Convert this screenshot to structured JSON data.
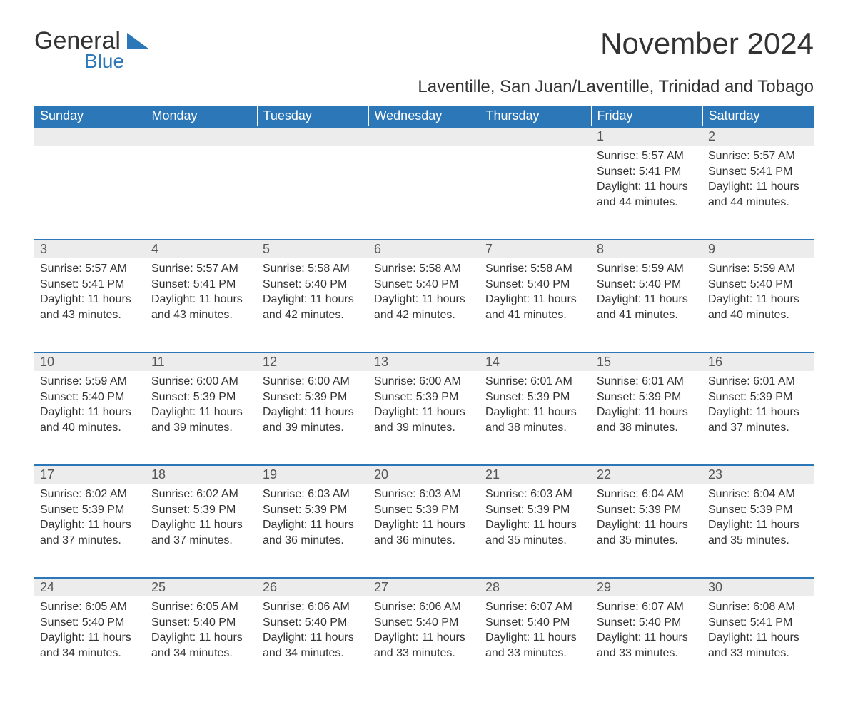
{
  "logo": {
    "main": "General",
    "sub": "Blue",
    "main_color": "#333333",
    "sub_color": "#2c77b8"
  },
  "title": "November 2024",
  "location": "Laventille, San Juan/Laventille, Trinidad and Tobago",
  "colors": {
    "header_bg": "#2c77b8",
    "header_text": "#ffffff",
    "daynum_bg": "#ececec",
    "row_rule": "#2c77b8",
    "body_text": "#333333"
  },
  "day_headers": [
    "Sunday",
    "Monday",
    "Tuesday",
    "Wednesday",
    "Thursday",
    "Friday",
    "Saturday"
  ],
  "weeks": [
    [
      null,
      null,
      null,
      null,
      null,
      {
        "n": "1",
        "sunrise": "5:57 AM",
        "sunset": "5:41 PM",
        "daylight": "11 hours and 44 minutes."
      },
      {
        "n": "2",
        "sunrise": "5:57 AM",
        "sunset": "5:41 PM",
        "daylight": "11 hours and 44 minutes."
      }
    ],
    [
      {
        "n": "3",
        "sunrise": "5:57 AM",
        "sunset": "5:41 PM",
        "daylight": "11 hours and 43 minutes."
      },
      {
        "n": "4",
        "sunrise": "5:57 AM",
        "sunset": "5:41 PM",
        "daylight": "11 hours and 43 minutes."
      },
      {
        "n": "5",
        "sunrise": "5:58 AM",
        "sunset": "5:40 PM",
        "daylight": "11 hours and 42 minutes."
      },
      {
        "n": "6",
        "sunrise": "5:58 AM",
        "sunset": "5:40 PM",
        "daylight": "11 hours and 42 minutes."
      },
      {
        "n": "7",
        "sunrise": "5:58 AM",
        "sunset": "5:40 PM",
        "daylight": "11 hours and 41 minutes."
      },
      {
        "n": "8",
        "sunrise": "5:59 AM",
        "sunset": "5:40 PM",
        "daylight": "11 hours and 41 minutes."
      },
      {
        "n": "9",
        "sunrise": "5:59 AM",
        "sunset": "5:40 PM",
        "daylight": "11 hours and 40 minutes."
      }
    ],
    [
      {
        "n": "10",
        "sunrise": "5:59 AM",
        "sunset": "5:40 PM",
        "daylight": "11 hours and 40 minutes."
      },
      {
        "n": "11",
        "sunrise": "6:00 AM",
        "sunset": "5:39 PM",
        "daylight": "11 hours and 39 minutes."
      },
      {
        "n": "12",
        "sunrise": "6:00 AM",
        "sunset": "5:39 PM",
        "daylight": "11 hours and 39 minutes."
      },
      {
        "n": "13",
        "sunrise": "6:00 AM",
        "sunset": "5:39 PM",
        "daylight": "11 hours and 39 minutes."
      },
      {
        "n": "14",
        "sunrise": "6:01 AM",
        "sunset": "5:39 PM",
        "daylight": "11 hours and 38 minutes."
      },
      {
        "n": "15",
        "sunrise": "6:01 AM",
        "sunset": "5:39 PM",
        "daylight": "11 hours and 38 minutes."
      },
      {
        "n": "16",
        "sunrise": "6:01 AM",
        "sunset": "5:39 PM",
        "daylight": "11 hours and 37 minutes."
      }
    ],
    [
      {
        "n": "17",
        "sunrise": "6:02 AM",
        "sunset": "5:39 PM",
        "daylight": "11 hours and 37 minutes."
      },
      {
        "n": "18",
        "sunrise": "6:02 AM",
        "sunset": "5:39 PM",
        "daylight": "11 hours and 37 minutes."
      },
      {
        "n": "19",
        "sunrise": "6:03 AM",
        "sunset": "5:39 PM",
        "daylight": "11 hours and 36 minutes."
      },
      {
        "n": "20",
        "sunrise": "6:03 AM",
        "sunset": "5:39 PM",
        "daylight": "11 hours and 36 minutes."
      },
      {
        "n": "21",
        "sunrise": "6:03 AM",
        "sunset": "5:39 PM",
        "daylight": "11 hours and 35 minutes."
      },
      {
        "n": "22",
        "sunrise": "6:04 AM",
        "sunset": "5:39 PM",
        "daylight": "11 hours and 35 minutes."
      },
      {
        "n": "23",
        "sunrise": "6:04 AM",
        "sunset": "5:39 PM",
        "daylight": "11 hours and 35 minutes."
      }
    ],
    [
      {
        "n": "24",
        "sunrise": "6:05 AM",
        "sunset": "5:40 PM",
        "daylight": "11 hours and 34 minutes."
      },
      {
        "n": "25",
        "sunrise": "6:05 AM",
        "sunset": "5:40 PM",
        "daylight": "11 hours and 34 minutes."
      },
      {
        "n": "26",
        "sunrise": "6:06 AM",
        "sunset": "5:40 PM",
        "daylight": "11 hours and 34 minutes."
      },
      {
        "n": "27",
        "sunrise": "6:06 AM",
        "sunset": "5:40 PM",
        "daylight": "11 hours and 33 minutes."
      },
      {
        "n": "28",
        "sunrise": "6:07 AM",
        "sunset": "5:40 PM",
        "daylight": "11 hours and 33 minutes."
      },
      {
        "n": "29",
        "sunrise": "6:07 AM",
        "sunset": "5:40 PM",
        "daylight": "11 hours and 33 minutes."
      },
      {
        "n": "30",
        "sunrise": "6:08 AM",
        "sunset": "5:41 PM",
        "daylight": "11 hours and 33 minutes."
      }
    ]
  ],
  "labels": {
    "sunrise": "Sunrise: ",
    "sunset": "Sunset: ",
    "daylight": "Daylight: "
  }
}
